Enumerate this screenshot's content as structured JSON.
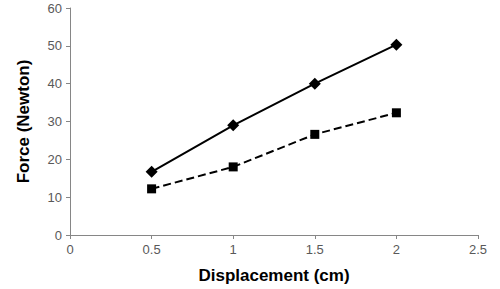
{
  "chart_data": {
    "type": "line",
    "x_label": "Displacement (cm)",
    "y_label": "Force (Newton)",
    "x": [
      0.5,
      1,
      1.5,
      2
    ],
    "series": [
      {
        "color": "#000000",
        "marker": "diamond",
        "line_style": "solid",
        "values": [
          16.7,
          29,
          40,
          50.3
        ]
      },
      {
        "color": "#000000",
        "marker": "square",
        "line_style": "dashed",
        "values": [
          12.2,
          18,
          26.6,
          32.3
        ]
      }
    ],
    "xlim": [
      0,
      2.5
    ],
    "xticks": [
      0,
      0.5,
      1,
      1.5,
      2,
      2.5
    ],
    "ylim": [
      0,
      60
    ],
    "yticks": [
      0,
      10,
      20,
      30,
      40,
      50,
      60
    ],
    "grid": false
  }
}
